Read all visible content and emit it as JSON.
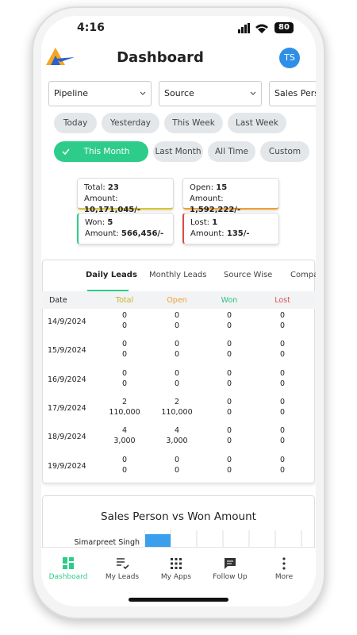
{
  "status": {
    "time": "4:16",
    "battery": "80"
  },
  "header": {
    "title": "Dashboard",
    "avatar": "TS"
  },
  "filters": [
    "Pipeline",
    "Source",
    "Sales Perso"
  ],
  "chips": [
    "Today",
    "Yesterday",
    "This Week",
    "Last Week",
    "This Month",
    "Last Month",
    "All Time",
    "Custom"
  ],
  "selected_chip": "This Month",
  "cards": [
    {
      "label": "Total:",
      "value": "23",
      "amount_label": "Amount:",
      "amount": "10,171,045/-"
    },
    {
      "label": "Open:",
      "value": "15",
      "amount_label": "Amount:",
      "amount": "1,592,222/-"
    },
    {
      "label": "Won:",
      "value": "5",
      "amount_label": "Amount:",
      "amount": "566,456/-"
    },
    {
      "label": "Lost:",
      "value": "1",
      "amount_label": "Amount:",
      "amount": "135/-"
    }
  ],
  "tabs": [
    "Daily Leads",
    "Monthly Leads",
    "Source Wise",
    "Compa"
  ],
  "table": {
    "columns": [
      "Date",
      "Total",
      "Open",
      "Won",
      "Lost"
    ],
    "rows": [
      [
        "14/9/2024",
        [
          "0",
          "0"
        ],
        [
          "0",
          "0"
        ],
        [
          "0",
          "0"
        ],
        [
          "0",
          "0"
        ]
      ],
      [
        "15/9/2024",
        [
          "0",
          "0"
        ],
        [
          "0",
          "0"
        ],
        [
          "0",
          "0"
        ],
        [
          "0",
          "0"
        ]
      ],
      [
        "16/9/2024",
        [
          "0",
          "0"
        ],
        [
          "0",
          "0"
        ],
        [
          "0",
          "0"
        ],
        [
          "0",
          "0"
        ]
      ],
      [
        "17/9/2024",
        [
          "2",
          "110,000"
        ],
        [
          "2",
          "110,000"
        ],
        [
          "0",
          "0"
        ],
        [
          "0",
          "0"
        ]
      ],
      [
        "18/9/2024",
        [
          "4",
          "3,000"
        ],
        [
          "4",
          "3,000"
        ],
        [
          "0",
          "0"
        ],
        [
          "0",
          "0"
        ]
      ],
      [
        "19/9/2024",
        [
          "0",
          "0"
        ],
        [
          "0",
          "0"
        ],
        [
          "0",
          "0"
        ],
        [
          "0",
          "0"
        ]
      ]
    ]
  },
  "chart": {
    "title": "Sales Person vs Won Amount",
    "first_label": "Simarpreet Singh"
  },
  "nav": [
    "Dashboard",
    "My Leads",
    "My Apps",
    "Follow Up",
    "More"
  ]
}
